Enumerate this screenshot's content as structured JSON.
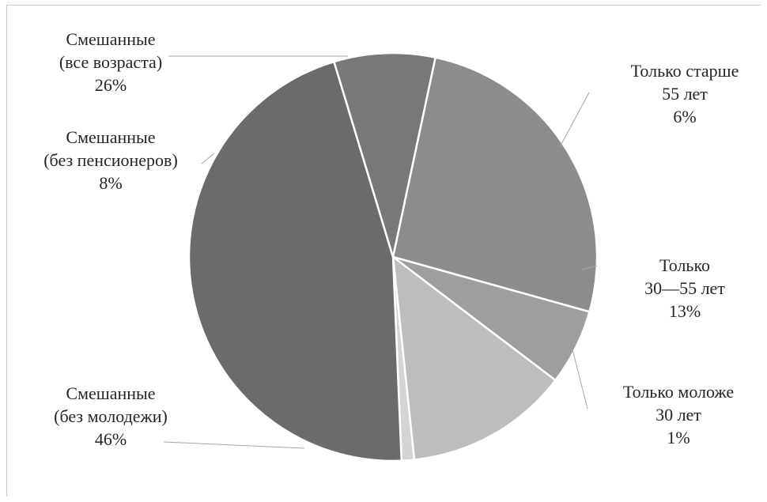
{
  "chart_data": {
    "type": "pie",
    "title": "",
    "start_angle_deg": 78,
    "direction": "clockwise",
    "label_color": "#262626",
    "edge_color": "#ffffff",
    "leader_color": "#a6a6a6",
    "slices": [
      {
        "label_lines": [
          "Смешанные",
          "(все возраста)"
        ],
        "percent_label": "26%",
        "value": 26,
        "color": "#8c8c8e"
      },
      {
        "label_lines": [
          "Только старше",
          "55 лет"
        ],
        "percent_label": "6%",
        "value": 6,
        "color": "#9e9ea0"
      },
      {
        "label_lines": [
          "Только",
          "30—55 лет"
        ],
        "percent_label": "13%",
        "value": 13,
        "color": "#bdbdbf"
      },
      {
        "label_lines": [
          "Только моложе",
          "30 лет"
        ],
        "percent_label": "1%",
        "value": 1,
        "color": "#d4d4d6"
      },
      {
        "label_lines": [
          "Смешанные",
          "(без молодежи)"
        ],
        "percent_label": "46%",
        "value": 46,
        "color": "#6b6b6e"
      },
      {
        "label_lines": [
          "Смешанные",
          "(без пенсионеров)"
        ],
        "percent_label": "8%",
        "value": 8,
        "color": "#78787b"
      }
    ]
  }
}
